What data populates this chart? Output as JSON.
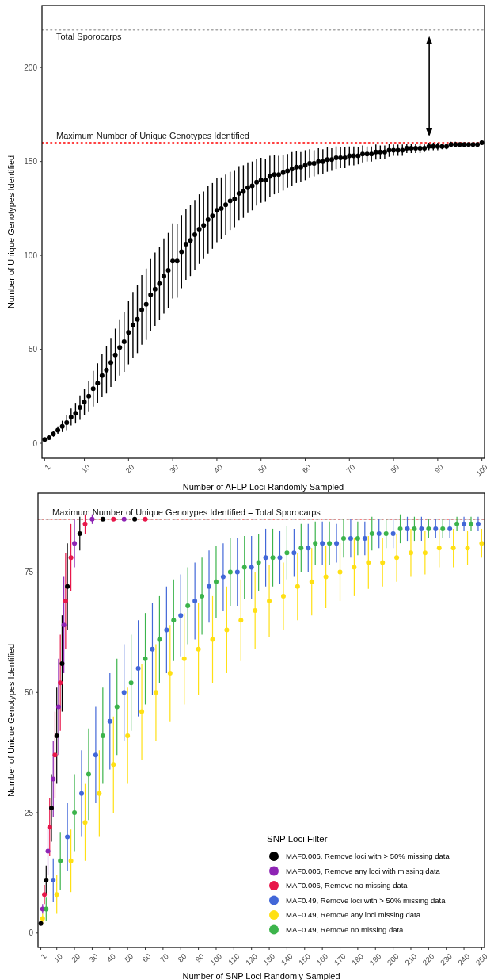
{
  "chart_data": [
    {
      "type": "scatter",
      "xlabel": "Number of AFLP Loci Randomly Sampled",
      "ylabel": "Number of Unique Genotypes Identified",
      "marker": "circle",
      "legend": false,
      "xlim": [
        0.4,
        100.6
      ],
      "ylim": [
        -8,
        233
      ],
      "xticks": [
        1,
        10,
        20,
        30,
        40,
        50,
        60,
        70,
        80,
        90,
        100
      ],
      "yticks": [
        0,
        50,
        100,
        150,
        200
      ],
      "ref_lines": [
        {
          "axis": "y",
          "value": 220,
          "label": "Total Sporocarps",
          "color": "#a6a6a6",
          "line_style": "dotted"
        },
        {
          "axis": "y",
          "value": 160,
          "label": "Maximum Number of Unique Genotypes Identified",
          "color": "#ff0000",
          "line_style": "dotted"
        }
      ],
      "series": [
        {
          "color": "#000000",
          "x": [
            1,
            2,
            3,
            4,
            5,
            6,
            7,
            8,
            9,
            10,
            11,
            12,
            13,
            14,
            15,
            16,
            17,
            18,
            19,
            20,
            21,
            22,
            23,
            24,
            25,
            26,
            27,
            28,
            29,
            30,
            31,
            32,
            33,
            34,
            35,
            36,
            37,
            38,
            39,
            40,
            41,
            42,
            43,
            44,
            45,
            46,
            47,
            48,
            49,
            50,
            51,
            52,
            53,
            54,
            55,
            56,
            57,
            58,
            59,
            60,
            61,
            62,
            63,
            64,
            65,
            66,
            67,
            68,
            69,
            70,
            71,
            72,
            73,
            74,
            75,
            76,
            77,
            78,
            79,
            80,
            81,
            82,
            83,
            84,
            85,
            86,
            87,
            88,
            89,
            90,
            91,
            92,
            93,
            94,
            95,
            96,
            97,
            98,
            99,
            100
          ],
          "values": [
            2,
            3,
            5,
            7,
            9,
            11,
            14,
            16,
            19,
            22,
            25,
            29,
            32,
            36,
            39,
            43,
            47,
            51,
            54,
            59,
            63,
            66,
            71,
            74,
            79,
            82,
            85,
            89,
            92,
            97,
            97,
            102,
            106,
            108,
            111,
            114,
            116,
            119,
            121,
            124,
            125,
            127,
            129,
            130,
            133,
            134,
            136,
            137,
            139,
            140,
            140,
            142,
            143,
            143,
            144,
            145,
            146,
            147,
            147,
            148,
            149,
            149,
            150,
            150,
            151,
            151,
            152,
            152,
            152,
            153,
            153,
            153,
            154,
            154,
            154,
            155,
            155,
            155,
            156,
            156,
            156,
            156,
            157,
            157,
            157,
            157,
            157,
            158,
            158,
            158,
            158,
            158,
            159,
            159,
            159,
            159,
            159,
            159,
            159,
            160
          ],
          "errors": [
            0.5,
            1,
            1.5,
            2,
            3,
            4,
            4.5,
            5.5,
            6.5,
            7,
            8,
            9.5,
            10.5,
            11.5,
            12.5,
            13,
            14,
            15,
            16,
            17,
            17.5,
            18,
            18.5,
            19,
            19,
            19.5,
            19.5,
            20,
            20,
            20,
            19.5,
            19.5,
            19,
            19,
            18.5,
            18.5,
            18,
            18,
            17.5,
            17,
            16.5,
            16,
            15.5,
            15,
            14.5,
            14,
            13.5,
            13,
            12.5,
            12,
            11.5,
            11,
            10.5,
            10,
            9.5,
            9,
            9,
            8.5,
            8,
            8,
            7.5,
            7,
            7,
            6.5,
            6.5,
            6,
            6,
            5.5,
            5.5,
            5,
            5,
            4.5,
            4.5,
            4,
            4,
            4,
            3.5,
            3.5,
            3.5,
            3,
            3,
            3,
            2.5,
            2.5,
            2.5,
            2.5,
            2,
            2,
            2,
            2,
            1.5,
            1.5,
            1.5,
            1.5,
            1,
            1,
            1,
            1,
            1,
            0
          ]
        }
      ]
    },
    {
      "type": "scatter",
      "xlabel": "Number of SNP Loci Randomly Sampled",
      "ylabel": "Number of Unique Genotypes Identified",
      "marker": "circle",
      "legend": "bottom right",
      "legend_title": "SNP Loci Filter",
      "xlim": [
        -0.6,
        251.6
      ],
      "ylim": [
        -3,
        91.4
      ],
      "xticks": [
        1,
        10,
        20,
        30,
        40,
        50,
        60,
        70,
        80,
        90,
        100,
        110,
        120,
        130,
        140,
        150,
        160,
        170,
        180,
        190,
        200,
        210,
        220,
        230,
        240,
        250
      ],
      "yticks": [
        0,
        25,
        50,
        75
      ],
      "ref_lines": [
        {
          "axis": "y",
          "value": 86,
          "label": "Maximum Number of Unique Genotypes Identified = Total Sporocarps",
          "color": "#ff0000",
          "line_style": "dotted"
        },
        {
          "axis": "y",
          "value": 86,
          "color": "#a6a6a6",
          "line_style": "dashed"
        }
      ],
      "series": [
        {
          "name": "MAF0.006, Remove loci with > 50% missing data",
          "color": "#000000",
          "x": [
            1,
            4,
            7,
            10,
            13,
            16,
            23,
            36,
            54
          ],
          "values": [
            2,
            11,
            26,
            41,
            56,
            72,
            83,
            86,
            86
          ],
          "errors": [
            0,
            3,
            7,
            10,
            10,
            9,
            3.5,
            0,
            0
          ]
        },
        {
          "name": "MAF0.006, Remove any loci with missing data",
          "color": "#8e24b4",
          "x": [
            2,
            5,
            8,
            11,
            14,
            20,
            30,
            48
          ],
          "values": [
            5,
            17,
            32,
            47,
            64,
            81,
            86,
            86
          ],
          "errors": [
            1,
            5,
            8,
            10,
            10,
            5,
            1,
            0
          ]
        },
        {
          "name": "MAF0.006, Remove no missing data",
          "color": "#e8174a",
          "x": [
            3,
            6,
            9,
            12,
            15,
            18,
            26,
            42,
            60
          ],
          "values": [
            8,
            22,
            37,
            52,
            69,
            78,
            85,
            86,
            86
          ],
          "errors": [
            2,
            6,
            9,
            10,
            10,
            7,
            2,
            0,
            0
          ]
        },
        {
          "name": "MAF0.49, Remove loci with > 50% missing data",
          "color": "#4267d8",
          "x": [
            8,
            16,
            24,
            32,
            40,
            48,
            56,
            64,
            72,
            80,
            88,
            96,
            104,
            112,
            120,
            128,
            136,
            144,
            152,
            160,
            168,
            176,
            184,
            192,
            200,
            208,
            216,
            224,
            232,
            240,
            248
          ],
          "values": [
            11,
            20,
            29,
            37,
            44,
            50,
            55,
            59,
            63,
            66,
            69,
            72,
            74,
            75,
            76,
            78,
            78,
            79,
            80,
            81,
            81,
            82,
            82,
            83,
            83,
            84,
            84,
            84,
            84,
            85,
            85
          ],
          "errors": [
            4.5,
            7,
            9,
            10,
            10,
            10,
            10,
            9.5,
            9,
            8.5,
            8,
            7.5,
            7,
            7,
            6.5,
            6,
            5.5,
            5,
            5,
            4.5,
            4,
            4,
            3.5,
            3,
            3,
            2.5,
            2.5,
            2,
            2,
            1.5,
            1.5
          ]
        },
        {
          "name": "MAF0.49, Remove any loci missing data",
          "color": "#ffe014",
          "x": [
            2,
            10,
            18,
            26,
            34,
            42,
            50,
            58,
            66,
            74,
            82,
            90,
            98,
            106,
            114,
            122,
            130,
            138,
            146,
            154,
            162,
            170,
            178,
            186,
            194,
            202,
            210,
            218,
            226,
            234,
            242,
            250
          ],
          "values": [
            3,
            8,
            15,
            23,
            29,
            35,
            41,
            46,
            50,
            54,
            57,
            59,
            61,
            63,
            65,
            67,
            69,
            70,
            72,
            73,
            74,
            75,
            76,
            77,
            77,
            78,
            79,
            79,
            80,
            80,
            80,
            81
          ],
          "errors": [
            1,
            4,
            6.5,
            8,
            9,
            10,
            10,
            10,
            10,
            10,
            9.5,
            9.5,
            9,
            9,
            8.5,
            8,
            7.5,
            7,
            7,
            7,
            6.5,
            6,
            6,
            5.5,
            5,
            5,
            5,
            4.5,
            4,
            4,
            3.5,
            3
          ]
        },
        {
          "name": "MAF0.49, Remove no missing data",
          "color": "#3cb44b",
          "x": [
            4,
            12,
            20,
            28,
            36,
            44,
            52,
            60,
            68,
            76,
            84,
            92,
            100,
            108,
            116,
            124,
            132,
            140,
            148,
            156,
            164,
            172,
            180,
            188,
            196,
            204,
            212,
            220,
            228,
            236,
            244
          ],
          "values": [
            5,
            15,
            25,
            33,
            41,
            47,
            52,
            57,
            61,
            65,
            68,
            70,
            73,
            75,
            76,
            77,
            78,
            79,
            80,
            81,
            81,
            82,
            82,
            83,
            83,
            84,
            84,
            84,
            84,
            85,
            85
          ],
          "errors": [
            2.5,
            6,
            8,
            9.5,
            10,
            10,
            10,
            9.5,
            9,
            8.5,
            8,
            8,
            7.5,
            7,
            6.5,
            6,
            6,
            5.5,
            5,
            4.5,
            4.5,
            4,
            3.5,
            3.5,
            3,
            3,
            2.5,
            2,
            2,
            1.5,
            1.5
          ]
        }
      ]
    }
  ]
}
